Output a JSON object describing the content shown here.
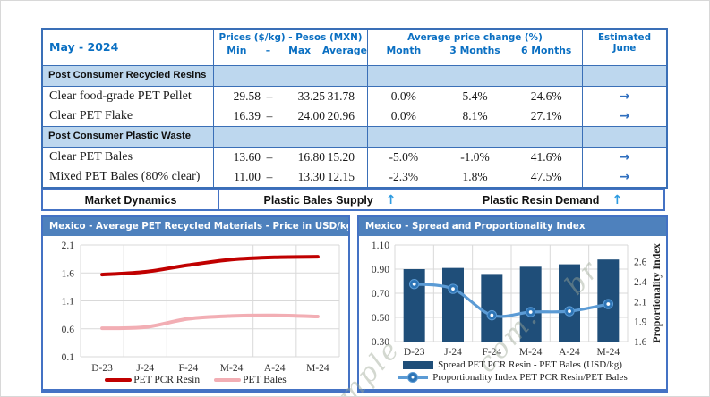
{
  "colors": {
    "table_border": "#3A6FB7",
    "panel_border": "#4472C4",
    "header_text_blue": "#0A6FC2",
    "section_band_blue": "#BDD7EE",
    "chart_title_bar": "#4E81BD",
    "resin_red": "#C00000",
    "bales_pink": "#F2AEB4",
    "spread_bar_blue": "#1F4E79",
    "index_line_blue": "#5B9BD5",
    "estimate_arrow_blue": "#2F6FBF",
    "trend_arrow_blue": "#2E9BE0"
  },
  "table": {
    "period": "May - 2024",
    "header": {
      "prices_group": "Prices ($/kg) - Pesos (MXN)",
      "min": "Min",
      "range_dash": "–",
      "max": "Max",
      "average": "Average",
      "change_group": "Average price change (%)",
      "month": "Month",
      "three_months": "3 Months",
      "six_months": "6 Months",
      "estimated": "Estimated",
      "estimated2": "June"
    },
    "sections": [
      {
        "label": "Post Consumer Recycled Resins",
        "rows": [
          {
            "name": "Clear food-grade PET Pellet",
            "min": "29.58",
            "dash": "–",
            "max": "33.25",
            "average": "31.78",
            "month": "0.0%",
            "three_months": "5.4%",
            "six_months": "24.6%",
            "estimate": "→"
          },
          {
            "name": "Clear PET Flake",
            "min": "16.39",
            "dash": "–",
            "max": "24.00",
            "average": "20.96",
            "month": "0.0%",
            "three_months": "8.1%",
            "six_months": "27.1%",
            "estimate": "→"
          }
        ]
      },
      {
        "label": "Post Consumer Plastic Waste",
        "rows": [
          {
            "name": "Clear PET Bales",
            "min": "13.60",
            "dash": "–",
            "max": "16.80",
            "average": "15.20",
            "month": "-5.0%",
            "three_months": "-1.0%",
            "six_months": "41.6%",
            "estimate": "→"
          },
          {
            "name": "Mixed PET Bales (80% clear)",
            "min": "11.00",
            "dash": "–",
            "max": "13.30",
            "average": "12.15",
            "month": "-2.3%",
            "three_months": "1.8%",
            "six_months": "47.5%",
            "estimate": "→"
          }
        ]
      }
    ]
  },
  "market_bar": {
    "market_dynamics": "Market Dynamics",
    "supply": "Plastic Bales Supply",
    "supply_arrow": "↑",
    "demand": "Plastic Resin Demand",
    "demand_arrow": "↑"
  },
  "chart_data": [
    {
      "type": "line",
      "title": "Mexico - Average PET Recycled Materials - Price in USD/kg",
      "categories": [
        "D-23",
        "J-24",
        "F-24",
        "M-24",
        "A-24",
        "M-24"
      ],
      "series": [
        {
          "name": "PET PCR Resin",
          "color": "#C00000",
          "values": [
            1.57,
            1.62,
            1.74,
            1.84,
            1.88,
            1.89
          ]
        },
        {
          "name": "PET Bales",
          "color": "#F2AEB4",
          "values": [
            0.61,
            0.63,
            0.78,
            0.83,
            0.84,
            0.82
          ]
        }
      ],
      "ylim": [
        0.1,
        2.1
      ],
      "yticks": [
        "2.1",
        "1.6",
        "1.1",
        "0.6",
        "0.1"
      ],
      "grid": true,
      "legend_position": "bottom"
    },
    {
      "type": "bar",
      "title": "Mexico - Spread and Proportionality Index",
      "categories": [
        "D-23",
        "J-24",
        "F-24",
        "M-24",
        "A-24",
        "M-24"
      ],
      "bars": {
        "name": "Spread PET PCR Resin - PET Bales (USD/kg)",
        "color": "#1F4E79",
        "axis": "left",
        "values": [
          0.9,
          0.91,
          0.86,
          0.92,
          0.94,
          0.98
        ]
      },
      "line": {
        "name": "Proportionality Index PET PCR Resin/PET Bales",
        "color": "#5B9BD5",
        "axis": "right",
        "values": [
          2.37,
          2.31,
          1.98,
          2.02,
          2.03,
          2.12
        ]
      },
      "y_left": {
        "range": [
          0.3,
          1.1
        ],
        "ticks": [
          "1.10",
          "0.90",
          "0.70",
          "0.50",
          "0.30"
        ]
      },
      "y_right": {
        "range": [
          1.65,
          2.86
        ],
        "ticks": [
          {
            "pos": 2.65,
            "label": "2.6"
          },
          {
            "pos": 2.4,
            "label": "2.4"
          },
          {
            "pos": 2.15,
            "label": "2.1"
          },
          {
            "pos": 1.9,
            "label": "1.9"
          },
          {
            "pos": 1.65,
            "label": "1.6"
          }
        ],
        "axis_label": "Proportionality Index"
      },
      "grid": true,
      "legend_position": "bottom"
    }
  ],
  "watermark": {
    "fragments": [
      "mple",
      "com.",
      "br"
    ]
  }
}
